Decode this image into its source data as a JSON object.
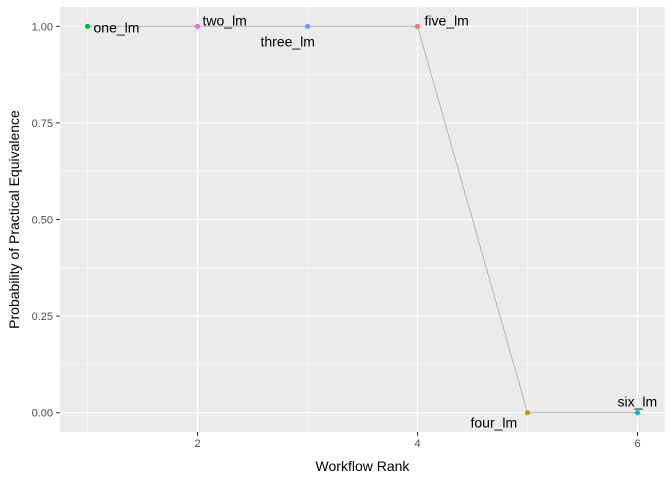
{
  "chart_data": {
    "type": "scatter",
    "xlabel": "Workflow Rank",
    "ylabel": "Probability of Practical Equivalence",
    "xlim": [
      0.75,
      6.25
    ],
    "ylim": [
      -0.05,
      1.05
    ],
    "x_ticks": [
      2,
      4,
      6
    ],
    "x_tick_labels": [
      "2",
      "4",
      "6"
    ],
    "y_ticks": [
      0,
      0.25,
      0.5,
      0.75,
      1
    ],
    "y_tick_labels": [
      "0.00",
      "0.25",
      "0.50",
      "0.75",
      "1.00"
    ],
    "grid": true,
    "connecting_line": true,
    "points": [
      {
        "label": "one_lm",
        "x": 1,
        "y": 1.0,
        "color": "#00BA38"
      },
      {
        "label": "two_lm",
        "x": 2,
        "y": 1.0,
        "color": "#F564E3"
      },
      {
        "label": "three_lm",
        "x": 3,
        "y": 1.0,
        "color": "#619CFF"
      },
      {
        "label": "five_lm",
        "x": 4,
        "y": 1.0,
        "color": "#F8766D"
      },
      {
        "label": "four_lm",
        "x": 5,
        "y": 0.0,
        "color": "#B79F00"
      },
      {
        "label": "six_lm",
        "x": 6,
        "y": 0.0,
        "color": "#00BFC4"
      }
    ],
    "colors": {
      "panel_background": "#EBEBEB",
      "grid_major": "#FFFFFF",
      "line": "#A9A9A9",
      "tick_label": "#4D4D4D"
    }
  }
}
